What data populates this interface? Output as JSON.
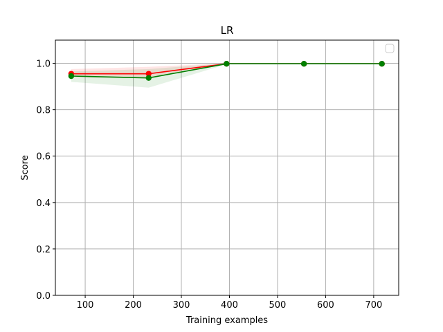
{
  "chart_data": {
    "type": "line",
    "title": "LR",
    "xlabel": "Training examples",
    "ylabel": "Score",
    "xlim": [
      38,
      752
    ],
    "ylim": [
      0.0,
      1.1
    ],
    "xticks": [
      100,
      200,
      300,
      400,
      500,
      600,
      700
    ],
    "yticks": [
      0.0,
      0.2,
      0.4,
      0.6,
      0.8,
      1.0
    ],
    "grid": true,
    "legend": {
      "placement": "top-right",
      "entries": []
    },
    "x": [
      71,
      232,
      394,
      555,
      717
    ],
    "series": [
      {
        "color": "#ff0000",
        "values": [
          0.955,
          0.955,
          0.998,
          0.998,
          0.998
        ],
        "band_low": [
          0.94,
          0.935,
          0.997,
          0.997,
          0.997
        ],
        "band_high": [
          0.975,
          0.985,
          1.0,
          1.0,
          1.0
        ]
      },
      {
        "color": "#008000",
        "values": [
          0.945,
          0.937,
          0.998,
          0.998,
          0.998
        ],
        "band_low": [
          0.92,
          0.895,
          0.996,
          0.996,
          0.996
        ],
        "band_high": [
          0.965,
          0.975,
          1.0,
          1.0,
          1.0
        ]
      }
    ]
  }
}
